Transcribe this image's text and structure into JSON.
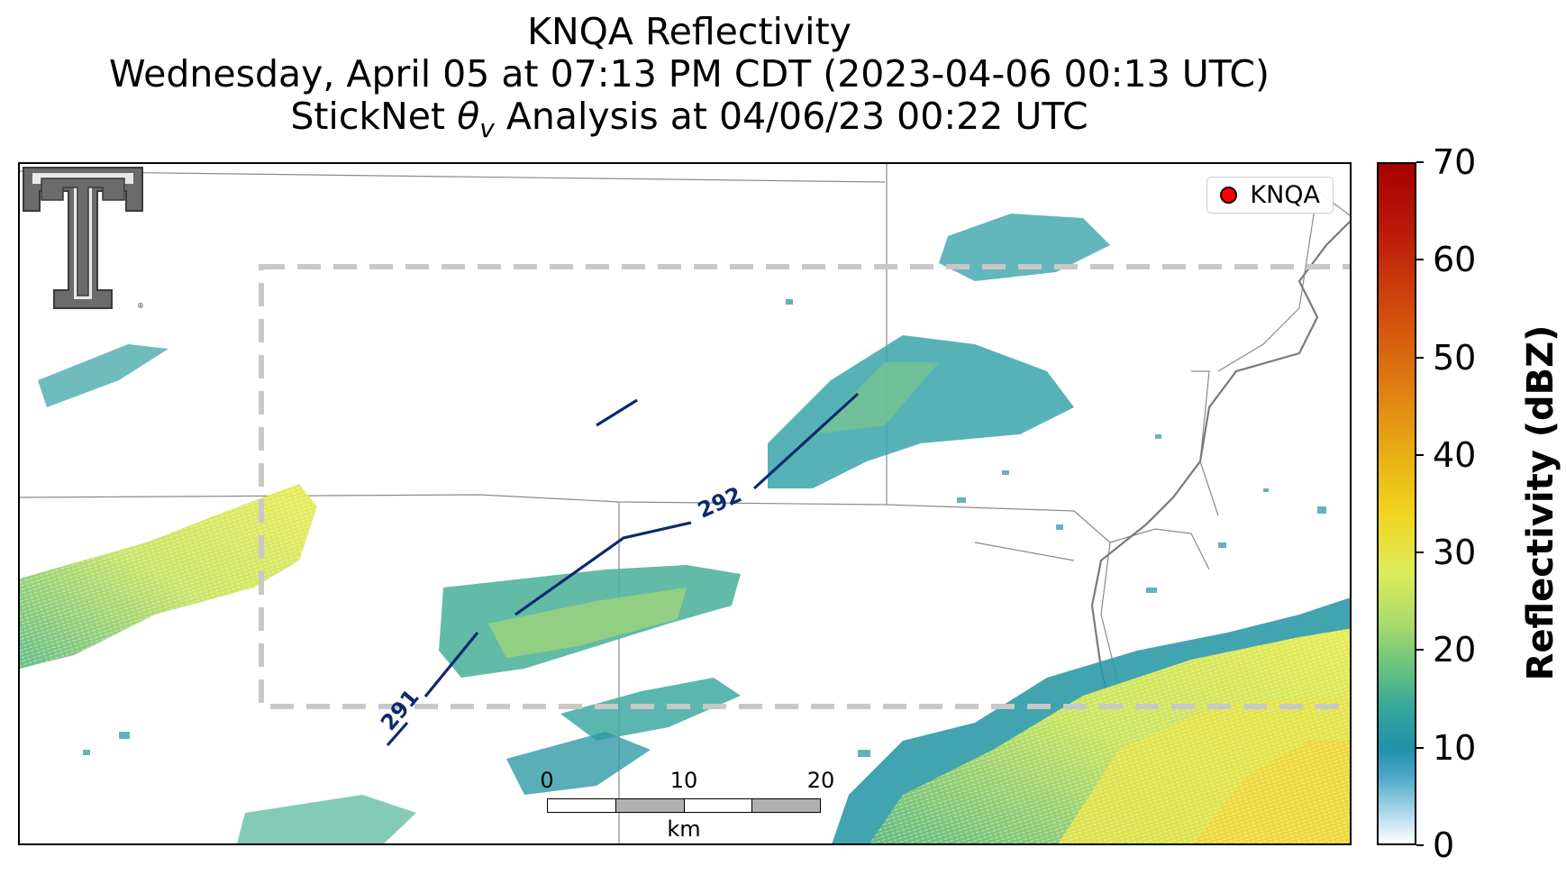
{
  "title": {
    "line1": "KNQA Reflectivity",
    "line2": "Wednesday, April 05 at 07:13 PM CDT (2023-04-06 00:13 UTC)",
    "line3_prefix": "StickNet ",
    "line3_symbol": "θ",
    "line3_subscript": "v",
    "line3_suffix": " Analysis at 04/06/23 00:22 UTC"
  },
  "legend": {
    "label": "KNQA",
    "marker_color": "#ff0000"
  },
  "contours": [
    {
      "label": "291",
      "value": 291
    },
    {
      "label": "292",
      "value": 292
    }
  ],
  "scalebar": {
    "ticks": [
      "0",
      "10",
      "20"
    ],
    "unit": "km"
  },
  "colorbar": {
    "title": "Reflectivity (dBZ)",
    "ticks": [
      "0",
      "10",
      "20",
      "30",
      "40",
      "50",
      "60",
      "70"
    ],
    "min": 0,
    "max": 70
  },
  "colors": {
    "contour": "#0d2a6e",
    "analysis_box": "#c8c8c8",
    "boundaries": "#8a8a8a",
    "river": "#7a7a7a"
  },
  "logo_name": "texas-tech-double-t-logo"
}
